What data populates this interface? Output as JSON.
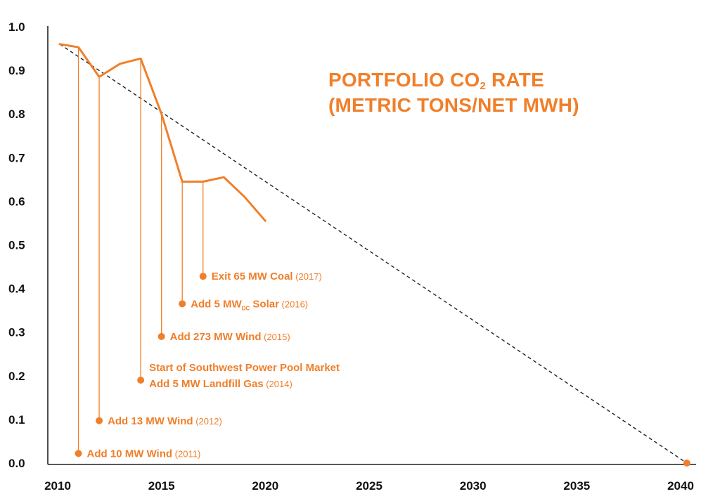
{
  "chart_data": {
    "type": "line",
    "title": {
      "line1_prefix": "PORTFOLIO CO",
      "line1_sub": "2",
      "line1_suffix": " RATE",
      "line2": "(METRIC TONS/NET MWH)"
    },
    "xlabel": "",
    "ylabel": "",
    "xlim": [
      2010,
      2041
    ],
    "ylim": [
      0.0,
      1.0
    ],
    "x_ticks": [
      "2010",
      "2015",
      "2020",
      "2025",
      "2030",
      "2035",
      "2040"
    ],
    "y_ticks": [
      "0.0",
      "0.1",
      "0.2",
      "0.3",
      "0.4",
      "0.5",
      "0.6",
      "0.7",
      "0.8",
      "0.9",
      "1.0"
    ],
    "series": [
      {
        "style": "solid",
        "color": "#f07f2a",
        "x": [
          2010.1,
          2011,
          2012,
          2013,
          2014,
          2015,
          2016,
          2017,
          2018,
          2019,
          2020
        ],
        "y": [
          0.96,
          0.953,
          0.885,
          0.915,
          0.927,
          0.8,
          0.645,
          0.645,
          0.655,
          0.61,
          0.555
        ]
      },
      {
        "style": "dashed",
        "color": "#222222",
        "x": [
          2010.1,
          2040.3
        ],
        "y": [
          0.96,
          0.0
        ]
      }
    ],
    "endpoint_marker": {
      "x": 2040.3,
      "y": 0.0,
      "color": "#f07f2a"
    },
    "annotations": [
      {
        "year": 2011,
        "line_top_y": 0.953,
        "dot_y": 0.022,
        "label": "Add 10 MW Wind",
        "year_label": "(2011)"
      },
      {
        "year": 2012,
        "line_top_y": 0.885,
        "dot_y": 0.097,
        "label": "Add 13 MW Wind",
        "year_label": "(2012)"
      },
      {
        "year": 2014,
        "line_top_y": 0.927,
        "dot_y": 0.19,
        "label_line1": "Start of Southwest Power Pool Market",
        "label": "Add 5 MW Landfill Gas",
        "year_label": "(2014)"
      },
      {
        "year": 2015,
        "line_top_y": 0.8,
        "dot_y": 0.29,
        "label": "Add 273 MW Wind",
        "year_label": "(2015)"
      },
      {
        "year": 2016,
        "line_top_y": 0.645,
        "dot_y": 0.365,
        "label": "Add 5 MW",
        "label_sub": "DC",
        "label_after": " Solar",
        "year_label": "(2016)"
      },
      {
        "year": 2017,
        "line_top_y": 0.645,
        "dot_y": 0.428,
        "label": "Exit 65 MW Coal",
        "year_label": "(2017)"
      }
    ]
  }
}
